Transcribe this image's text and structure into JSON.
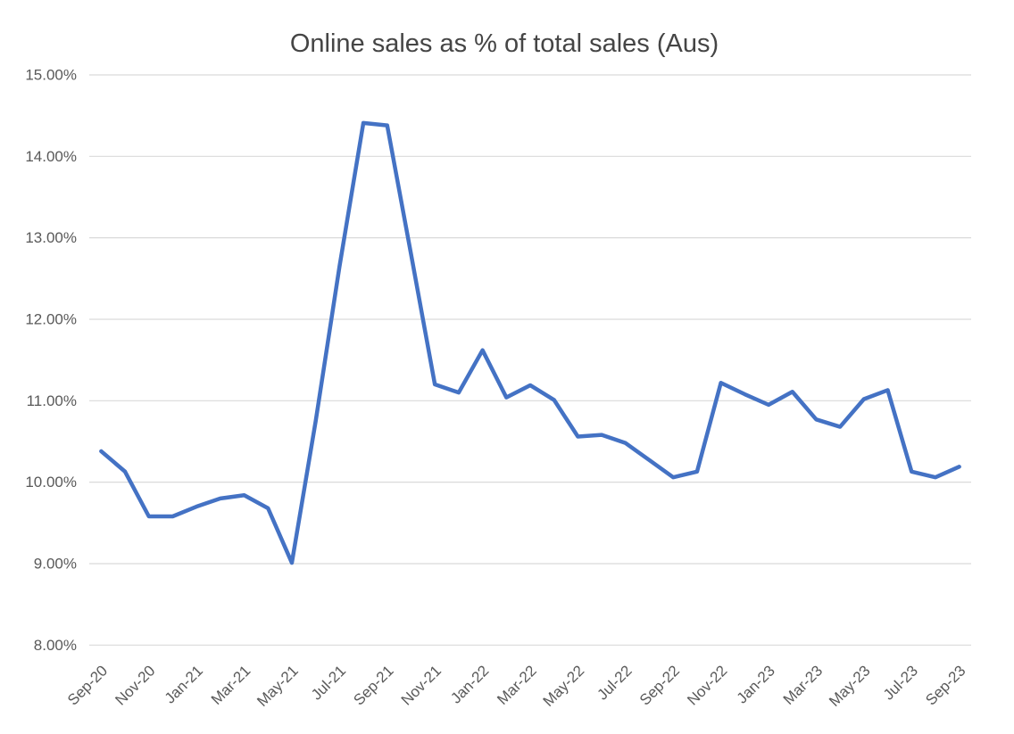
{
  "chart_data": {
    "type": "line",
    "title": "Online sales as % of total sales (Aus)",
    "x": [
      "Sep-20",
      "Oct-20",
      "Nov-20",
      "Dec-20",
      "Jan-21",
      "Feb-21",
      "Mar-21",
      "Apr-21",
      "May-21",
      "Jun-21",
      "Jul-21",
      "Aug-21",
      "Sep-21",
      "Oct-21",
      "Nov-21",
      "Dec-21",
      "Jan-22",
      "Feb-22",
      "Mar-22",
      "Apr-22",
      "May-22",
      "Jun-22",
      "Jul-22",
      "Aug-22",
      "Sep-22",
      "Oct-22",
      "Nov-22",
      "Dec-22",
      "Jan-23",
      "Feb-23",
      "Mar-23",
      "Apr-23",
      "May-23",
      "Jun-23",
      "Jul-23",
      "Aug-23",
      "Sep-23"
    ],
    "series": [
      {
        "name": "Online sales share",
        "values": [
          10.38,
          10.13,
          9.58,
          9.58,
          9.7,
          9.8,
          9.84,
          9.68,
          9.01,
          10.75,
          12.65,
          14.41,
          14.38,
          12.8,
          11.2,
          11.1,
          11.62,
          11.04,
          11.19,
          11.01,
          10.56,
          10.58,
          10.48,
          10.27,
          10.06,
          10.13,
          11.22,
          11.08,
          10.95,
          11.11,
          10.77,
          10.68,
          11.02,
          11.13,
          10.13,
          10.06,
          10.19
        ]
      }
    ],
    "y_axis": {
      "min": 8,
      "max": 15,
      "step": 1,
      "tick_labels": [
        "8.00%",
        "9.00%",
        "10.00%",
        "11.00%",
        "12.00%",
        "13.00%",
        "14.00%",
        "15.00%"
      ],
      "format": "percent-2dp"
    },
    "x_axis": {
      "label_every_n": 2,
      "label_rotation_deg": -45,
      "shown_tick_labels": [
        "Sep-20",
        "Nov-20",
        "Jan-21",
        "Mar-21",
        "May-21",
        "Jul-21",
        "Sep-21",
        "Nov-21",
        "Jan-22",
        "Mar-22",
        "May-22",
        "Jul-22",
        "Sep-22",
        "Nov-22",
        "Jan-23",
        "Mar-23",
        "May-23",
        "Jul-23",
        "Sep-23"
      ]
    },
    "legend": "none",
    "grid": "horizontal",
    "colors": {
      "line": "#4472C4",
      "gridline": "#D9D9D9",
      "axis_label": "#595959",
      "title": "#454545",
      "background": "#FFFFFF"
    }
  }
}
